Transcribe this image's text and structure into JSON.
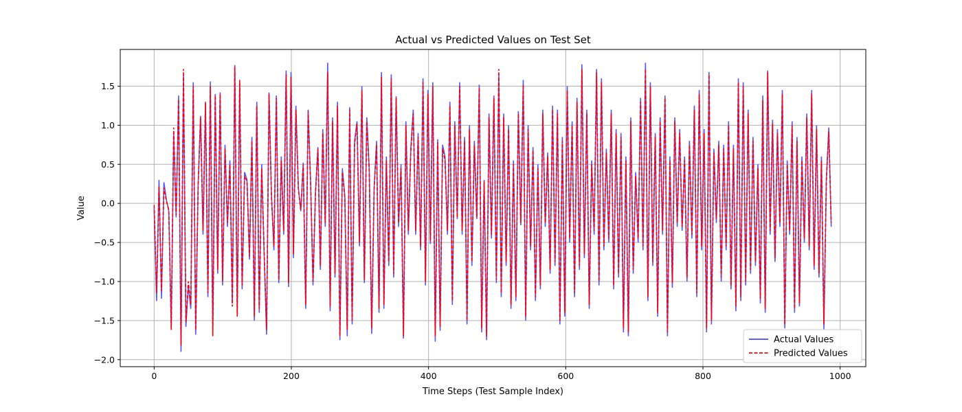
{
  "chart_data": {
    "type": "line",
    "title": "Actual vs Predicted Values on Test Set",
    "xlabel": "Time Steps (Test Sample Index)",
    "ylabel": "Value",
    "xlim": [
      -49.4,
      1037.4
    ],
    "ylim": [
      -2.09,
      1.97
    ],
    "xticks": [
      0,
      200,
      400,
      600,
      800,
      1000
    ],
    "yticks": [
      -2.0,
      -1.5,
      -1.0,
      -0.5,
      0.0,
      0.5,
      1.0,
      1.5
    ],
    "grid": true,
    "legend_position": "bottom-right",
    "n_points": 988,
    "series": [
      {
        "name": "Actual Values",
        "color": "#4444ff",
        "style": "solid",
        "values": [
          -0.06,
          -1.25,
          0.3,
          -1.22,
          0.27,
          0.05,
          -0.1,
          -1.6,
          0.9,
          -0.18,
          1.38,
          -1.9,
          1.64,
          -1.58,
          -1.05,
          -1.35,
          1.55,
          -1.68,
          0.25,
          1.12,
          -0.4,
          1.28,
          -1.2,
          1.56,
          -1.65,
          1.4,
          -0.9,
          1.42,
          -1.05,
          0.75,
          -0.3,
          0.55,
          -1.28,
          1.77,
          -1.42,
          1.55,
          -1.1,
          0.4,
          0.3,
          -0.72,
          0.85,
          -1.5,
          1.3,
          -1.4,
          0.5,
          -0.65,
          -1.68,
          1.42,
          0.1,
          -0.6,
          1.38,
          -1.02,
          0.6,
          -0.4,
          1.7,
          -1.07,
          1.68,
          -0.7,
          1.25,
          0.2,
          -0.1,
          0.52,
          -1.35,
          1.2,
          0.3,
          -1.05,
          0.15,
          0.72,
          -0.85,
          0.95,
          -0.3,
          1.8,
          -1.38,
          1.1,
          -0.95,
          1.3,
          -1.75,
          0.45,
          0.1,
          -1.7,
          1.23,
          -1.55,
          0.8,
          1.05,
          -0.55,
          1.5,
          -1.02,
          1.1,
          0.45,
          -1.67,
          0.2,
          0.8,
          -1.4,
          1.68,
          -1.35,
          0.6,
          -0.8,
          1.65,
          -0.95,
          1.37,
          -0.3,
          0.5,
          -1.73,
          1.05,
          -0.4,
          0.7,
          1.2,
          -0.4,
          0.9,
          -0.6,
          1.6,
          -1.05,
          1.45,
          -0.52,
          1.55,
          -1.77,
          0.82,
          -1.63,
          0.75,
          0.6,
          -0.4,
          1.3,
          -1.3,
          1.05,
          -0.2,
          1.55,
          -0.4,
          0.85,
          -1.55,
          1.0,
          -0.8,
          0.8,
          -0.2,
          1.52,
          -1.65,
          0.3,
          -1.75,
          1.15,
          -0.45,
          1.38,
          -1.02,
          1.63,
          -1.2,
          1.15,
          -0.8,
          1.0,
          -1.35,
          0.55,
          -1.25,
          1.18,
          -0.28,
          1.58,
          -1.5,
          1.0,
          -0.6,
          0.72,
          -1.25,
          0.5,
          -1.1,
          1.2,
          -0.3,
          0.65,
          -0.9,
          1.25,
          -0.8,
          1.2,
          -1.55,
          0.85,
          -1.45,
          1.5,
          -0.5,
          1.05,
          -1.2,
          1.35,
          -0.85,
          1.78,
          -0.7,
          1.2,
          -1.35,
          0.55,
          -0.4,
          1.72,
          -1.05,
          1.6,
          -0.6,
          0.7,
          -0.5,
          1.2,
          -1.1,
          0.95,
          -0.95,
          0.9,
          -1.65,
          0.6,
          -1.7,
          1.1,
          -0.9,
          0.4,
          -0.5,
          1.35,
          -0.6,
          1.8,
          -1.25,
          1.55,
          -0.8,
          0.9,
          -1.45,
          1.1,
          -0.4,
          1.38,
          -1.7,
          0.6,
          -1.08,
          1.1,
          -0.3,
          0.95,
          -0.35,
          0.6,
          -1.0,
          0.8,
          -0.45,
          1.25,
          -1.2,
          1.45,
          -0.6,
          0.95,
          -1.65,
          1.68,
          -1.55,
          0.7,
          -0.25,
          0.8,
          -1.0,
          0.75,
          -0.6,
          1.05,
          -1.1,
          0.75,
          -1.38,
          1.6,
          -1.25,
          1.55,
          -1.05,
          1.2,
          -0.9,
          0.85,
          -0.8,
          0.5,
          -1.28,
          1.38,
          -1.4,
          1.7,
          -0.4,
          1.07,
          -0.75,
          0.95,
          -0.3,
          1.45,
          -1.6,
          0.55,
          -0.4,
          1.05,
          -1.4,
          0.85,
          -1.32,
          0.6,
          -0.5,
          1.15,
          -0.6,
          1.45,
          -0.85,
          1.0,
          -0.95,
          0.6,
          -1.62,
          0.3,
          0.97,
          -0.3
        ]
      },
      {
        "name": "Predicted Values",
        "color": "#ff0000",
        "style": "dashed",
        "values": [
          -0.02,
          -1.15,
          0.22,
          -1.12,
          0.2,
          0.03,
          -0.08,
          -1.62,
          0.97,
          -0.15,
          1.33,
          -1.82,
          1.72,
          -1.52,
          -1.0,
          -1.3,
          1.5,
          -1.62,
          0.22,
          1.1,
          -0.35,
          1.3,
          -1.15,
          1.5,
          -1.7,
          1.38,
          -0.85,
          1.4,
          -1.0,
          0.7,
          -0.25,
          0.5,
          -1.32,
          1.75,
          -1.45,
          1.58,
          -1.05,
          0.35,
          0.28,
          -0.68,
          0.8,
          -1.45,
          1.25,
          -1.35,
          0.45,
          -0.6,
          -1.62,
          1.4,
          0.08,
          -0.55,
          1.35,
          -0.98,
          0.55,
          -0.35,
          1.65,
          -1.02,
          1.62,
          -0.65,
          1.2,
          0.18,
          -0.08,
          0.5,
          -1.3,
          1.18,
          0.25,
          -1.0,
          0.12,
          0.7,
          -0.8,
          0.9,
          -0.25,
          1.68,
          -1.32,
          1.05,
          -0.9,
          1.25,
          -1.7,
          0.4,
          0.08,
          -1.62,
          1.2,
          -1.5,
          0.75,
          1.02,
          -0.5,
          1.45,
          -0.98,
          1.05,
          0.4,
          -1.6,
          0.18,
          0.75,
          -1.35,
          1.62,
          -1.3,
          0.55,
          -0.75,
          1.6,
          -0.9,
          1.35,
          -0.25,
          0.45,
          -1.7,
          1.0,
          -0.35,
          0.65,
          1.15,
          -0.35,
          0.85,
          -0.55,
          1.55,
          -1.0,
          1.4,
          -0.48,
          1.5,
          -1.7,
          0.78,
          -1.58,
          0.7,
          0.55,
          -0.35,
          1.25,
          -1.25,
          1.0,
          -0.18,
          1.5,
          -0.35,
          0.8,
          -1.5,
          0.95,
          -0.75,
          0.75,
          -0.18,
          1.48,
          -1.6,
          0.28,
          -1.7,
          1.1,
          -0.4,
          1.35,
          -0.98,
          1.72,
          -1.15,
          1.1,
          -0.75,
          0.95,
          -1.3,
          0.5,
          -1.2,
          1.15,
          -0.25,
          1.52,
          -1.45,
          0.95,
          -0.55,
          0.68,
          -1.2,
          0.45,
          -1.05,
          1.15,
          -0.25,
          0.6,
          -0.85,
          1.2,
          -0.75,
          1.15,
          -1.5,
          0.8,
          -1.4,
          1.45,
          -0.45,
          1.0,
          -1.15,
          1.3,
          -0.8,
          1.72,
          -0.65,
          1.15,
          -1.3,
          0.5,
          -0.35,
          1.68,
          -1.0,
          1.55,
          -0.55,
          0.65,
          -0.45,
          1.15,
          -1.05,
          0.9,
          -0.9,
          0.85,
          -1.6,
          0.55,
          -1.65,
          1.05,
          -0.85,
          0.35,
          -0.45,
          1.3,
          -0.55,
          1.72,
          -1.2,
          1.5,
          -0.75,
          0.85,
          -1.4,
          1.05,
          -0.35,
          1.35,
          -1.65,
          0.55,
          -1.02,
          1.05,
          -0.25,
          0.9,
          -0.3,
          0.55,
          -0.95,
          0.75,
          -0.4,
          1.2,
          -1.15,
          1.4,
          -0.55,
          0.9,
          -1.6,
          1.65,
          -1.5,
          0.65,
          -0.2,
          0.75,
          -0.95,
          0.7,
          -0.55,
          1.0,
          -1.05,
          0.7,
          -1.32,
          1.55,
          -1.2,
          1.5,
          -1.0,
          1.15,
          -0.85,
          0.8,
          -0.75,
          0.45,
          -1.22,
          1.32,
          -1.35,
          1.68,
          -0.35,
          1.02,
          -0.7,
          0.9,
          -0.25,
          1.4,
          -1.55,
          0.5,
          -0.35,
          1.0,
          -1.35,
          0.8,
          -1.28,
          0.55,
          -0.45,
          1.1,
          -0.55,
          1.4,
          -0.8,
          0.95,
          -0.9,
          0.55,
          -1.55,
          0.28,
          0.92,
          -0.25
        ]
      }
    ]
  }
}
